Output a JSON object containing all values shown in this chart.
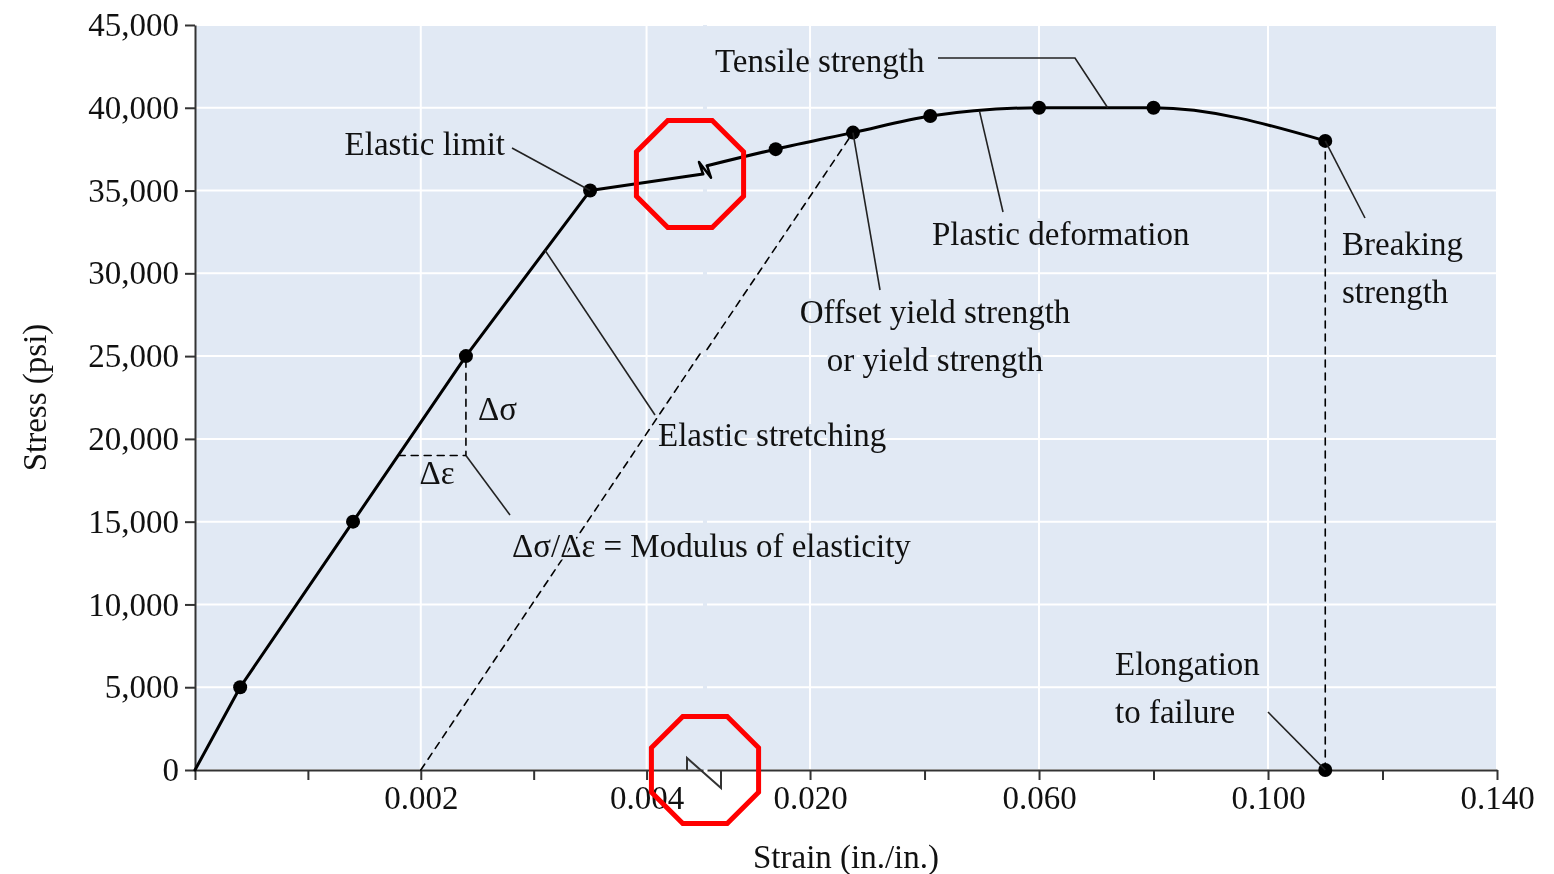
{
  "chart_data": [
    {
      "type": "line",
      "ylabel": "Stress (psi)",
      "xlim": [
        0,
        0.0045
      ],
      "ylim": [
        0,
        45000
      ],
      "xticks": [
        {
          "value": 0,
          "label": null
        },
        {
          "value": 0.001,
          "label": null
        },
        {
          "value": 0.002,
          "label": "0.002"
        },
        {
          "value": 0.003,
          "label": null
        },
        {
          "value": 0.004,
          "label": "0.004"
        }
      ],
      "yticks": [
        0,
        {
          "value": 5000,
          "label": "5,000"
        },
        {
          "value": 10000,
          "label": "10,000"
        },
        {
          "value": 15000,
          "label": "15,000"
        },
        {
          "value": 20000,
          "label": "20,000"
        },
        {
          "value": 25000,
          "label": "25,000"
        },
        {
          "value": 30000,
          "label": "30,000"
        },
        {
          "value": 35000,
          "label": "35,000"
        },
        {
          "value": 40000,
          "label": "40,000"
        },
        {
          "value": 45000,
          "label": "45,000"
        }
      ],
      "grid": true,
      "series": [
        {
          "color": "#000000",
          "line_style": "solid",
          "marker": "none",
          "x": [
            0,
            0.0004,
            0.0014,
            0.0024,
            0.0035,
            0.0045
          ],
          "values": [
            0,
            5000,
            15000,
            25000,
            35000,
            36000
          ]
        },
        {
          "type": "scatter",
          "color": "#000000",
          "marker": "circle",
          "x": [
            0.0004,
            0.0014,
            0.0024,
            0.0035
          ],
          "values": [
            5000,
            15000,
            25000,
            35000
          ]
        },
        {
          "type": "line",
          "color": "#000000",
          "line_style": "dashed",
          "marker": "none",
          "x": [
            0.002,
            0.0045
          ],
          "values": [
            0,
            25400
          ]
        },
        {
          "type": "line",
          "color": "#000000",
          "line_style": "dashed",
          "marker": "none",
          "x": [
            0.0018,
            0.0024,
            0.0024
          ],
          "values": [
            19000,
            19000,
            25000
          ]
        }
      ],
      "annotations": [
        {
          "text": "Elastic limit",
          "x": 0.0035,
          "y": 35000
        },
        {
          "text": "Elastic stretching",
          "x": 0.0031,
          "y": 31400
        },
        {
          "text": "Δσ",
          "x": 0.0024,
          "y": 22000
        },
        {
          "text": "Δε",
          "x": 0.0021,
          "y": 19000
        },
        {
          "text": "Δσ/Δε = Modulus of elasticity",
          "x": 0.0024,
          "y": 19000
        }
      ]
    },
    {
      "type": "line",
      "xlabel": "Strain (in./in.)",
      "xlim": [
        0.002,
        0.14
      ],
      "ylim": [
        0,
        45000
      ],
      "tick_labels": "x",
      "xticks": [
        {
          "value": 0.02,
          "label": "0.020"
        },
        {
          "value": 0.04,
          "label": null
        },
        {
          "value": 0.06,
          "label": "0.060"
        },
        {
          "value": 0.08,
          "label": null
        },
        {
          "value": 0.1,
          "label": "0.100"
        },
        {
          "value": 0.12,
          "label": null
        },
        {
          "value": 0.14,
          "label": "0.140"
        }
      ],
      "yticks": [
        0,
        5000,
        10000,
        15000,
        20000,
        25000,
        30000,
        35000,
        40000,
        45000
      ],
      "grid": true,
      "series": [
        {
          "color": "#000000",
          "line_style": "solid",
          "marker": "none",
          "x": [
            0.002,
            0.014,
            0.0275,
            0.041,
            0.06,
            0.08,
            0.11
          ],
          "values": [
            36500,
            37500,
            38500,
            39500,
            40000,
            40000,
            38000
          ]
        },
        {
          "type": "scatter",
          "color": "#000000",
          "marker": "circle",
          "x": [
            0.014,
            0.0275,
            0.041,
            0.06,
            0.08,
            0.11,
            0.11
          ],
          "values": [
            37500,
            38500,
            39500,
            40000,
            40000,
            38000,
            0
          ]
        },
        {
          "color": "#000000",
          "line_style": "dashed",
          "marker": "none",
          "x": [
            0.002,
            0.0275
          ],
          "values": [
            25400,
            38500
          ]
        },
        {
          "type": "line",
          "color": "#000000",
          "line_style": "dashed",
          "marker": "none",
          "x": [
            0.11,
            0.11
          ],
          "values": [
            0,
            38000
          ]
        }
      ],
      "annotations": [
        {
          "text": "Tensile strength",
          "x": 0.072,
          "y": 40000
        },
        {
          "text": "Plastic deformation",
          "x": 0.0496,
          "y": 39800
        },
        {
          "text": "Offset yield strength\nor yield strength",
          "x": 0.0275,
          "y": 38500
        },
        {
          "text": "Breaking\nstrength",
          "x": 0.11,
          "y": 38000
        },
        {
          "text": "Elongation\nto failure",
          "x": 0.11,
          "y": 0
        }
      ]
    }
  ]
}
